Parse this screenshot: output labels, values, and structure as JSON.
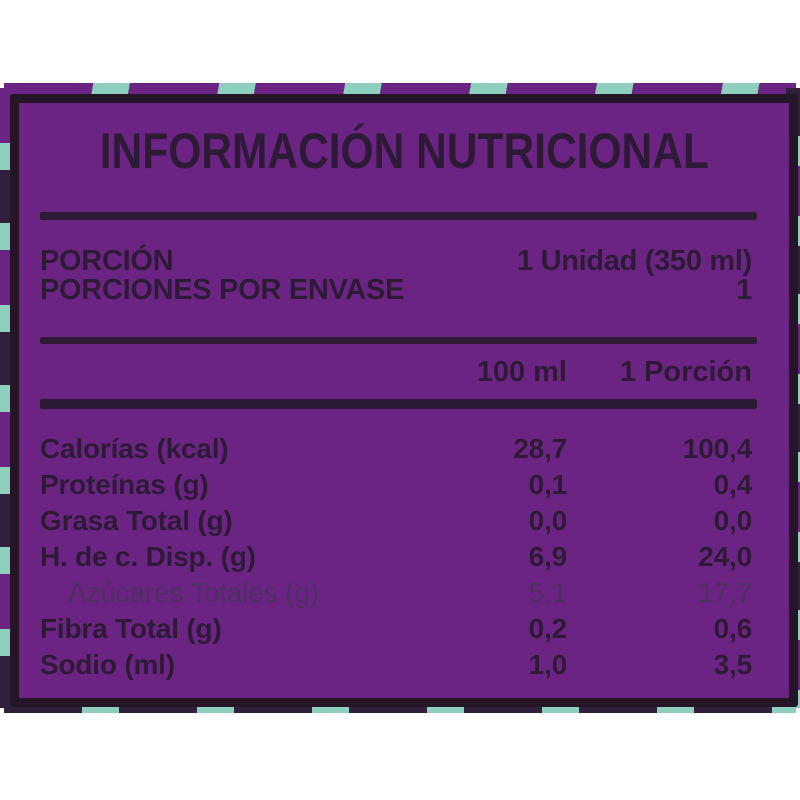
{
  "label": {
    "title": "INFORMACIÓN NUTRICIONAL",
    "colors": {
      "panel_purple": "#6c2484",
      "border_dark": "#241627",
      "text_dark": "#2d1b36",
      "trim_teal": "#8ecfbe",
      "sub_row_muted": "#4f2f62"
    },
    "serving": [
      {
        "name": "PORCIÓN",
        "value": "1 Unidad (350 ml)"
      },
      {
        "name": "PORCIONES POR ENVASE",
        "value": "1"
      }
    ],
    "column_headers": {
      "per_100": "100 ml",
      "per_portion": "1 Porción"
    },
    "rows": [
      {
        "name": "Calorías (kcal)",
        "per_100": "28,7",
        "per_portion": "100,4",
        "style": "bold"
      },
      {
        "name": "Proteínas (g)",
        "per_100": "0,1",
        "per_portion": "0,4",
        "style": "bold"
      },
      {
        "name": "Grasa Total (g)",
        "per_100": "0,0",
        "per_portion": "0,0",
        "style": "bold"
      },
      {
        "name": "H. de c. Disp. (g)",
        "per_100": "6,9",
        "per_portion": "24,0",
        "style": "bold"
      },
      {
        "name": "Azúcares Totales (g)",
        "per_100": "5,1",
        "per_portion": "17,7",
        "style": "sub"
      },
      {
        "name": "Fibra Total (g)",
        "per_100": "0,2",
        "per_portion": "0,6",
        "style": "bold"
      },
      {
        "name": "Sodio (ml)",
        "per_100": "1,0",
        "per_portion": "3,5",
        "style": "bold"
      }
    ]
  }
}
